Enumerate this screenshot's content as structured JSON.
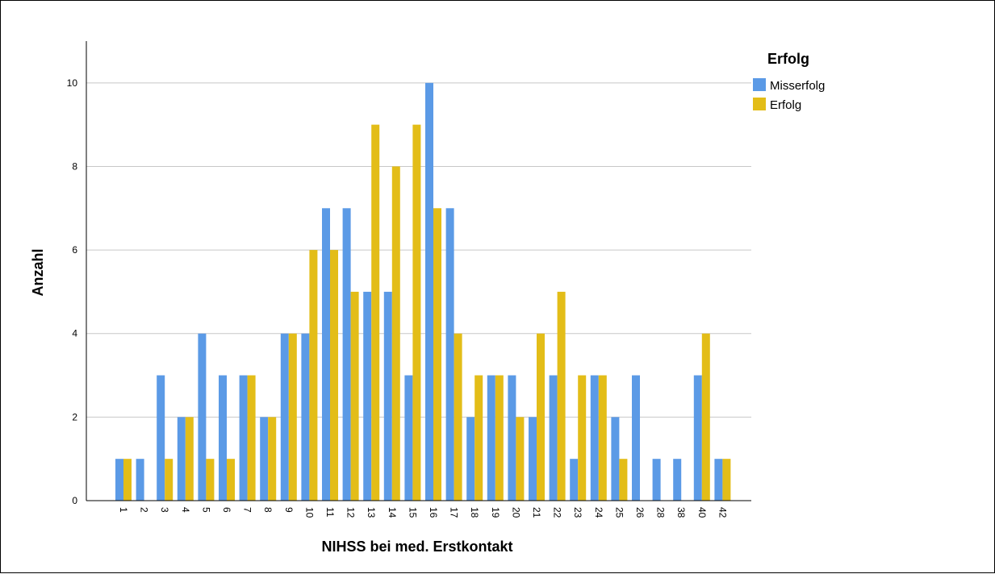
{
  "chart_data": {
    "type": "bar",
    "xlabel": "NIHSS bei med. Erstkontakt",
    "ylabel": "Anzahl",
    "categories": [
      "1",
      "2",
      "3",
      "4",
      "5",
      "6",
      "7",
      "8",
      "9",
      "10",
      "11",
      "12",
      "13",
      "14",
      "15",
      "16",
      "17",
      "18",
      "19",
      "20",
      "21",
      "22",
      "23",
      "24",
      "25",
      "26",
      "28",
      "38",
      "40",
      "42"
    ],
    "series": [
      {
        "name": "Misserfolg",
        "color": "#5b9ae6",
        "values": [
          1,
          1,
          3,
          2,
          4,
          3,
          3,
          2,
          4,
          4,
          7,
          7,
          5,
          5,
          3,
          10,
          7,
          2,
          3,
          3,
          2,
          3,
          1,
          3,
          2,
          3,
          1,
          1,
          3,
          1
        ]
      },
      {
        "name": "Erfolg",
        "color": "#e3bd18",
        "values": [
          1,
          0,
          1,
          2,
          1,
          1,
          3,
          2,
          4,
          6,
          6,
          5,
          9,
          8,
          9,
          7,
          4,
          3,
          3,
          2,
          4,
          5,
          3,
          3,
          1,
          0,
          0,
          0,
          4,
          1
        ]
      }
    ],
    "ylim": [
      0,
      11
    ],
    "yticks": [
      0,
      2,
      4,
      6,
      8,
      10
    ],
    "grid": true,
    "legend": {
      "title": "Erfolg",
      "position": "right"
    }
  }
}
